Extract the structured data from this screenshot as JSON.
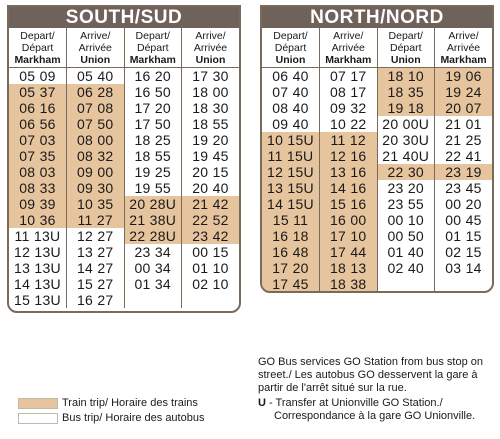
{
  "south": {
    "title": "SOUTH/SUD",
    "headers": [
      {
        "l1": "Depart/",
        "l2": "Départ",
        "l3": "Markham"
      },
      {
        "l1": "Arrive/",
        "l2": "Arrivée",
        "l3": "Union"
      },
      {
        "l1": "Depart/",
        "l2": "Départ",
        "l3": "Markham"
      },
      {
        "l1": "Arrive/",
        "l2": "Arrivée",
        "l3": "Union"
      }
    ],
    "rows": [
      {
        "a": "05 09",
        "b": "05 40",
        "c": "16 20",
        "d": "17 30",
        "t1": false,
        "t2": false
      },
      {
        "a": "05 37",
        "b": "06 28",
        "c": "16 50",
        "d": "18 00",
        "t1": true,
        "t2": false
      },
      {
        "a": "06 16",
        "b": "07 08",
        "c": "17 20",
        "d": "18 30",
        "t1": true,
        "t2": false
      },
      {
        "a": "06 56",
        "b": "07 50",
        "c": "17 50",
        "d": "18 55",
        "t1": true,
        "t2": false
      },
      {
        "a": "07 03",
        "b": "08 00",
        "c": "18 25",
        "d": "19 20",
        "t1": true,
        "t2": false
      },
      {
        "a": "07 35",
        "b": "08 32",
        "c": "18 55",
        "d": "19 45",
        "t1": true,
        "t2": false
      },
      {
        "a": "08 03",
        "b": "09 00",
        "c": "19 25",
        "d": "20 15",
        "t1": true,
        "t2": false
      },
      {
        "a": "08 33",
        "b": "09 30",
        "c": "19 55",
        "d": "20 40",
        "t1": true,
        "t2": false
      },
      {
        "a": "09 39",
        "b": "10 35",
        "c": "20 28U",
        "d": "21 42",
        "t1": true,
        "t2": true
      },
      {
        "a": "10 36",
        "b": "11 27",
        "c": "21 38U",
        "d": "22 52",
        "t1": true,
        "t2": true
      },
      {
        "a": "11 13U",
        "b": "12 27",
        "c": "22 28U",
        "d": "23 42",
        "t1": false,
        "t2": true
      },
      {
        "a": "12 13U",
        "b": "13 27",
        "c": "23 34",
        "d": "00 15",
        "t1": false,
        "t2": false
      },
      {
        "a": "13 13U",
        "b": "14 27",
        "c": "00 34",
        "d": "01 10",
        "t1": false,
        "t2": false
      },
      {
        "a": "14 13U",
        "b": "15 27",
        "c": "01 34",
        "d": "02 10",
        "t1": false,
        "t2": false
      },
      {
        "a": "15 13U",
        "b": "16 27",
        "c": "",
        "d": "",
        "t1": false,
        "t2": false
      }
    ]
  },
  "north": {
    "title": "NORTH/NORD",
    "headers": [
      {
        "l1": "Depart/",
        "l2": "Départ",
        "l3": "Union"
      },
      {
        "l1": "Arrive/",
        "l2": "Arrivée",
        "l3": "Markham"
      },
      {
        "l1": "Depart/",
        "l2": "Départ",
        "l3": "Union"
      },
      {
        "l1": "Arrive/",
        "l2": "Arrivée",
        "l3": "Markham"
      }
    ],
    "rows": [
      {
        "a": "06 40",
        "b": "07 17",
        "c": "18 10",
        "d": "19 06",
        "t1": false,
        "t2": true
      },
      {
        "a": "07 40",
        "b": "08 17",
        "c": "18 35",
        "d": "19 24",
        "t1": false,
        "t2": true
      },
      {
        "a": "08 40",
        "b": "09 32",
        "c": "19 18",
        "d": "20 07",
        "t1": false,
        "t2": true
      },
      {
        "a": "09 40",
        "b": "10 22",
        "c": "20 00U",
        "d": "21 01",
        "t1": false,
        "t2": false
      },
      {
        "a": "10 15U",
        "b": "11 12",
        "c": "20 30U",
        "d": "21 25",
        "t1": true,
        "t2": false
      },
      {
        "a": "11 15U",
        "b": "12 16",
        "c": "21 40U",
        "d": "22 41",
        "t1": true,
        "t2": false
      },
      {
        "a": "12 15U",
        "b": "13 16",
        "c": "22 30",
        "d": "23 19",
        "t1": true,
        "t2": true
      },
      {
        "a": "13 15U",
        "b": "14 16",
        "c": "23 20",
        "d": "23 45",
        "t1": true,
        "t2": false
      },
      {
        "a": "14 15U",
        "b": "15 16",
        "c": "23 55",
        "d": "00 20",
        "t1": true,
        "t2": false
      },
      {
        "a": "15 11",
        "b": "16 00",
        "c": "00 10",
        "d": "00 45",
        "t1": true,
        "t2": false
      },
      {
        "a": "16 18",
        "b": "17 10",
        "c": "00 50",
        "d": "01 15",
        "t1": true,
        "t2": false
      },
      {
        "a": "16 48",
        "b": "17 44",
        "c": "01 40",
        "d": "02 15",
        "t1": true,
        "t2": false
      },
      {
        "a": "17 20",
        "b": "18 13",
        "c": "02 40",
        "d": "03 14",
        "t1": true,
        "t2": false
      },
      {
        "a": "17 45",
        "b": "18 38",
        "c": "",
        "d": "",
        "t1": true,
        "t2": false
      }
    ]
  },
  "legend": {
    "train": "Train trip/ Horaire des trains",
    "bus": "Bus trip/ Horaire des autobus"
  },
  "notes": {
    "go_bus": "GO Bus services GO Station from bus stop on street./ Les autobus GO desservent la gare à partir de l'arrêt situé sur la rue.",
    "u_key": "U",
    "u_sep": " - ",
    "u_text1": "Transfer at Unionville GO Station./",
    "u_text2": "Correspondance à la gare GO Unionville."
  },
  "colors": {
    "train": "#e6c49e",
    "bus": "#ffffff",
    "header": "#6e625a"
  }
}
